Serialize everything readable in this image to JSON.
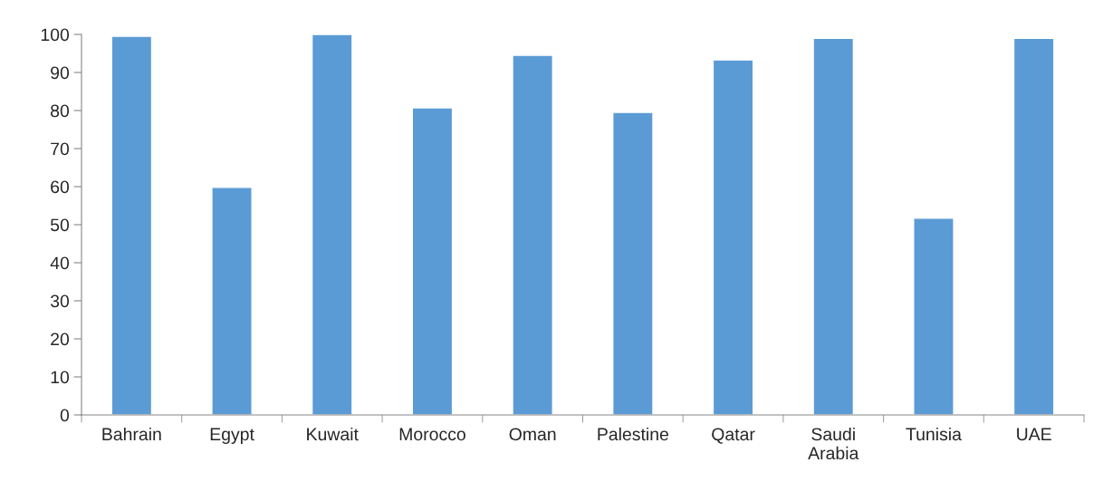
{
  "chart_data": {
    "type": "bar",
    "categories": [
      "Bahrain",
      "Egypt",
      "Kuwait",
      "Morocco",
      "Oman",
      "Palestine",
      "Qatar",
      "Saudi\nArabia",
      "Tunisia",
      "UAE"
    ],
    "values": [
      99.5,
      59.8,
      100,
      80.7,
      94.5,
      79.5,
      93.3,
      99,
      51.7,
      99
    ],
    "color": "#5b9bd5",
    "ylim": [
      0,
      100
    ],
    "yticks": [
      0,
      10,
      20,
      30,
      40,
      50,
      60,
      70,
      80,
      90,
      100
    ],
    "grid": false
  }
}
